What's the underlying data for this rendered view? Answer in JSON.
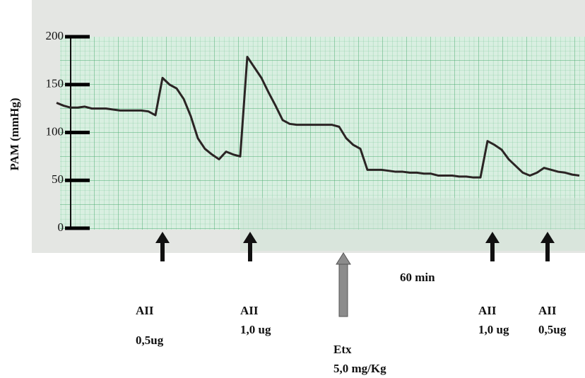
{
  "chart_data": {
    "type": "line",
    "y_label": "PAM (mmHg)",
    "ylim": [
      0,
      200
    ],
    "yticks": [
      0,
      50,
      100,
      150,
      200
    ],
    "color": "#2b2424",
    "values": [
      131,
      128,
      126,
      126,
      127,
      125,
      125,
      125,
      124,
      123,
      123,
      123,
      123,
      122,
      118,
      157,
      150,
      146,
      135,
      117,
      94,
      83,
      77,
      72,
      80,
      77,
      75,
      179,
      168,
      157,
      142,
      128,
      113,
      109,
      108,
      108,
      108,
      108,
      108,
      108,
      106,
      94,
      87,
      83,
      61,
      61,
      61,
      60,
      59,
      59,
      58,
      58,
      57,
      57,
      55,
      55,
      55,
      54,
      54,
      53,
      53,
      91,
      87,
      82,
      72,
      65,
      58,
      55,
      58,
      63,
      61,
      59,
      58,
      56,
      55
    ],
    "scale_bar": "60 min",
    "annotations": [
      {
        "label": "AII",
        "dose": "0,5ug"
      },
      {
        "label": "AII",
        "dose": "1,0 ug"
      },
      {
        "label": "Etx",
        "dose": "5,0 mg/Kg"
      },
      {
        "label": "AII",
        "dose": "1,0 ug"
      },
      {
        "label": "AII",
        "dose": "0,5ug"
      }
    ]
  }
}
